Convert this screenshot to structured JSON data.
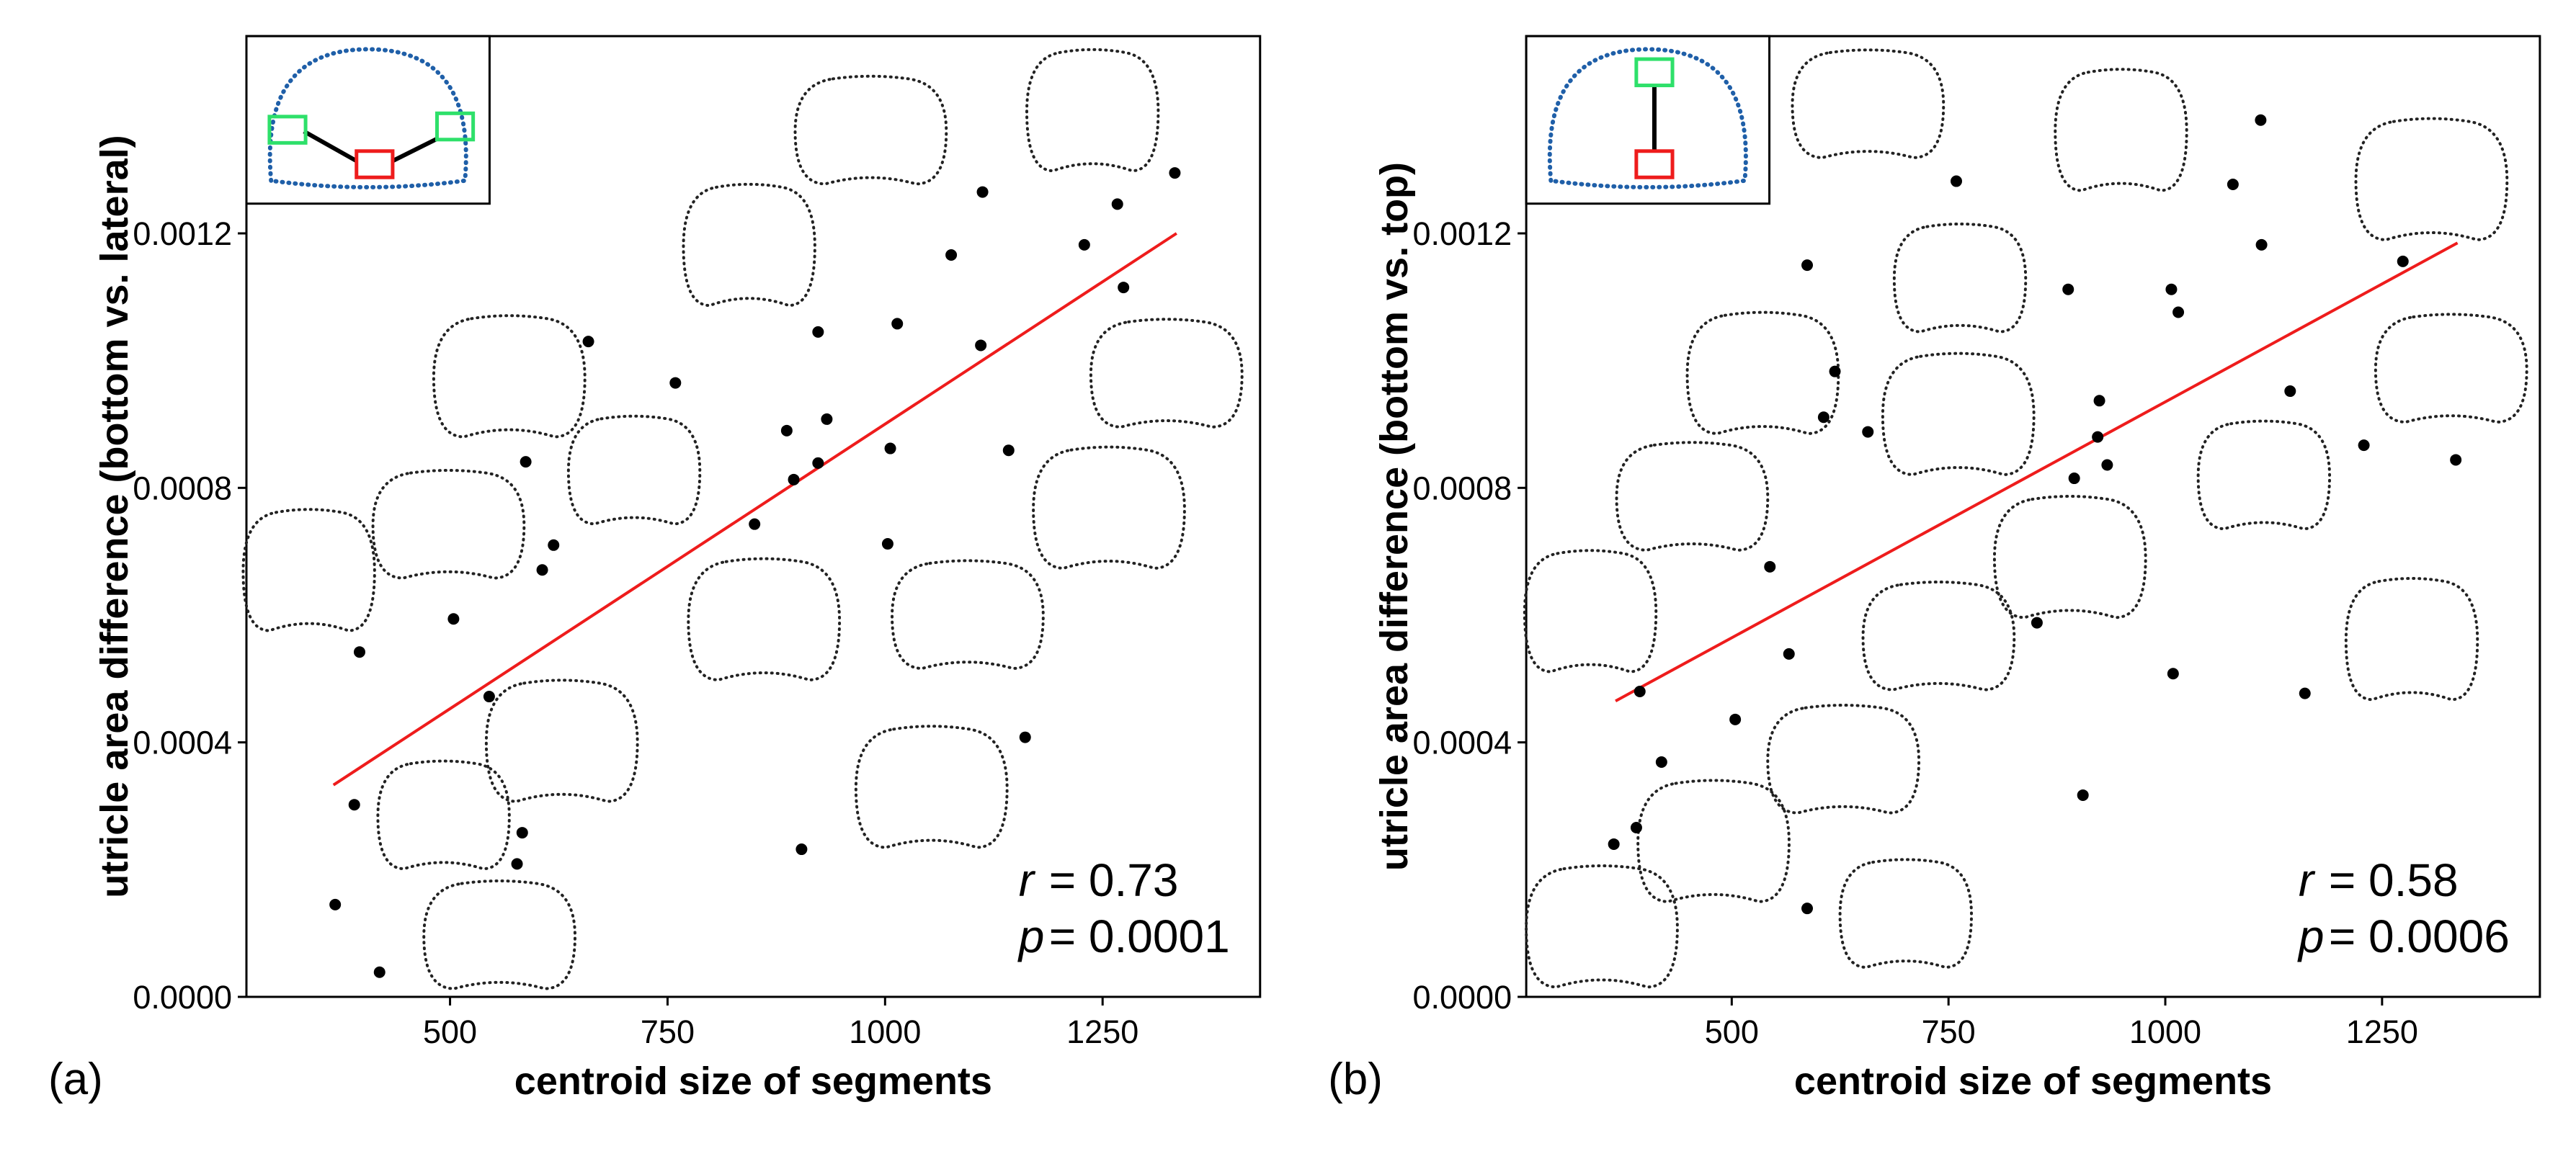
{
  "chart_data": [
    {
      "type": "scatter",
      "panel_label": "(a)",
      "xlabel": "centroid size of segments",
      "ylabel": "utricle area difference (bottom vs. lateral)",
      "xlim": [
        266,
        1431
      ],
      "ylim": [
        0,
        0.00151
      ],
      "xticks": [
        500,
        750,
        1000,
        1250
      ],
      "yticks": [
        {
          "value": 0,
          "label": "0.0000"
        },
        0.0004,
        0.0008,
        0.0012
      ],
      "x": [
        368,
        419,
        390,
        396,
        504,
        545,
        583,
        577,
        587,
        606,
        619,
        659,
        759,
        850,
        887,
        895,
        923,
        933,
        923,
        904,
        1006,
        1003,
        1014,
        1076,
        1110,
        1112,
        1142,
        1161,
        1229,
        1267,
        1274,
        1333
      ],
      "y": [
        0.000145,
        3.87e-05,
        0.000302,
        0.000542,
        0.000594,
        0.000472,
        0.000258,
        0.000209,
        0.000841,
        0.000671,
        0.00071,
        0.00103,
        0.000965,
        0.000743,
        0.00089,
        0.000813,
        0.000839,
        0.000908,
        0.001045,
        0.000232,
        0.000862,
        0.000712,
        0.001058,
        0.001166,
        0.001024,
        0.001265,
        0.000859,
        0.000408,
        0.001182,
        0.001246,
        0.001115,
        0.001295
      ],
      "color": "#000000",
      "fit": {
        "x": [
          366,
          1335
        ],
        "y": [
          0.000333,
          0.0012
        ],
        "color": "#ee1c1c"
      },
      "annotations": [
        {
          "var": "r",
          "text": "= 0.73"
        },
        {
          "var": "p",
          "text": "= 0.0001"
        }
      ]
    },
    {
      "type": "scatter",
      "panel_label": "(b)",
      "xlabel": "centroid size of segments",
      "ylabel": "utricle area difference (bottom vs. top)",
      "xlim": [
        263,
        1432
      ],
      "ylim": [
        0,
        0.00151
      ],
      "xticks": [
        500,
        750,
        1000,
        1250
      ],
      "yticks": [
        {
          "value": 0,
          "label": "0.0000"
        },
        0.0004,
        0.0008,
        0.0012
      ],
      "x": [
        364,
        390,
        419,
        394,
        504,
        544,
        566,
        587,
        587,
        619,
        606,
        657,
        759,
        888,
        895,
        852,
        905,
        924,
        922,
        933,
        1007,
        1015,
        1009,
        1078,
        1110,
        1111,
        1144,
        1161,
        1229,
        1274,
        1335
      ],
      "y": [
        0.00024,
        0.000266,
        0.000369,
        0.00048,
        0.000436,
        0.000676,
        0.000539,
        0.000139,
        0.00115,
        0.000983,
        0.000911,
        0.000888,
        0.001282,
        0.001112,
        0.000815,
        0.000588,
        0.000317,
        0.000937,
        0.00088,
        0.000836,
        0.001112,
        0.001076,
        0.000508,
        0.001277,
        0.001378,
        0.001182,
        0.000952,
        0.000477,
        0.000867,
        0.001156,
        0.000844
      ],
      "color": "#000000",
      "fit": {
        "x": [
          366,
          1337
        ],
        "y": [
          0.000465,
          0.001185
        ],
        "color": "#ee1c1c"
      },
      "annotations": [
        {
          "var": "r",
          "text": "= 0.58"
        },
        {
          "var": "p",
          "text": "= 0.0006"
        }
      ]
    }
  ]
}
